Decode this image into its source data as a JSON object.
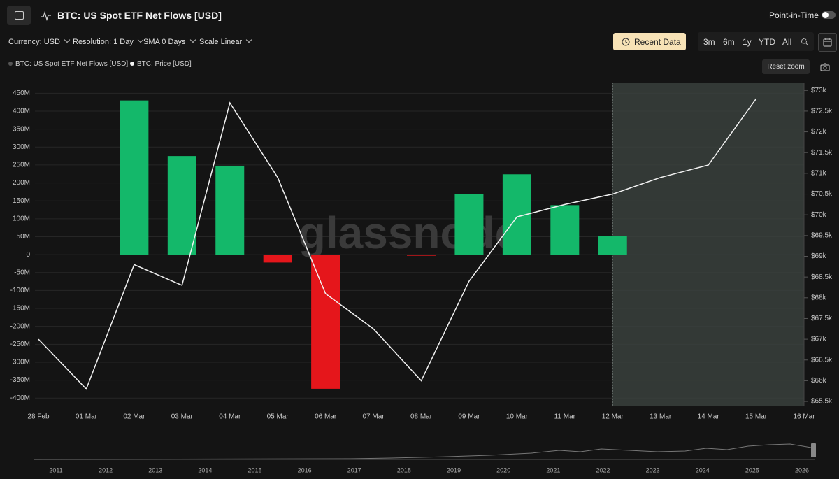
{
  "header": {
    "title": "BTC: US Spot ETF Net Flows [USD]",
    "toggle_label": "Point-in-Time"
  },
  "toolbar": {
    "controls": [
      "Currency: USD",
      "Resolution: 1 Day",
      "SMA 0 Days",
      "Scale Linear"
    ],
    "recent_button": "Recent Data",
    "ranges": [
      "3m",
      "6m",
      "1y",
      "YTD",
      "All"
    ]
  },
  "reset_zoom": "Reset zoom",
  "watermark": "glassnode",
  "chart_data": {
    "type": "combo",
    "categories": [
      "28 Feb",
      "01 Mar",
      "02 Mar",
      "03 Mar",
      "04 Mar",
      "05 Mar",
      "06 Mar",
      "07 Mar",
      "08 Mar",
      "09 Mar",
      "10 Mar",
      "11 Mar",
      "12 Mar",
      "13 Mar",
      "14 Mar",
      "15 Mar",
      "16 Mar"
    ],
    "series": [
      {
        "name": "BTC: US Spot ETF Net Flows [USD]",
        "type": "bar",
        "color": "#14b86a",
        "negative_color": "#e5161b",
        "values": [
          null,
          null,
          430,
          275,
          248,
          -22,
          -374,
          null,
          -3,
          168,
          224,
          138,
          51,
          null,
          null,
          null,
          null
        ]
      },
      {
        "name": "BTC: Price [USD]",
        "type": "line",
        "axis": "y2",
        "color": "#f2f2f2",
        "values": [
          67000,
          65800,
          68800,
          68300,
          72700,
          70900,
          68100,
          67250,
          66000,
          68400,
          69950,
          70250,
          70500,
          70900,
          71200,
          72800,
          null
        ]
      }
    ],
    "ylim": [
      -421,
      480
    ],
    "yticks": [
      {
        "value": 450,
        "label": "450M"
      },
      {
        "value": 400,
        "label": "400M"
      },
      {
        "value": 350,
        "label": "350M"
      },
      {
        "value": 300,
        "label": "300M"
      },
      {
        "value": 250,
        "label": "250M"
      },
      {
        "value": 200,
        "label": "200M"
      },
      {
        "value": 150,
        "label": "150M"
      },
      {
        "value": 100,
        "label": "100M"
      },
      {
        "value": 50,
        "label": "50M"
      },
      0,
      {
        "value": -50,
        "label": "-50M"
      },
      {
        "value": -100,
        "label": "-100M"
      },
      {
        "value": -150,
        "label": "-150M"
      },
      {
        "value": -200,
        "label": "-200M"
      },
      {
        "value": -250,
        "label": "-250M"
      },
      {
        "value": -300,
        "label": "-300M"
      },
      {
        "value": -350,
        "label": "-350M"
      },
      {
        "value": -400,
        "label": "-400M"
      }
    ],
    "y2lim": [
      65400,
      73190
    ],
    "y2ticks": [
      {
        "value": 73000,
        "label": "$73k"
      },
      {
        "value": 72500,
        "label": "$72.5k"
      },
      {
        "value": 72000,
        "label": "$72k"
      },
      {
        "value": 71500,
        "label": "$71.5k"
      },
      {
        "value": 71000,
        "label": "$71k"
      },
      {
        "value": 70500,
        "label": "$70.5k"
      },
      {
        "value": 70000,
        "label": "$70k"
      },
      {
        "value": 69500,
        "label": "$69.5k"
      },
      {
        "value": 69000,
        "label": "$69k"
      },
      {
        "value": 68500,
        "label": "$68.5k"
      },
      {
        "value": 68000,
        "label": "$68k"
      },
      {
        "value": 67500,
        "label": "$67.5k"
      },
      {
        "value": 67000,
        "label": "$67k"
      },
      {
        "value": 66500,
        "label": "$66.5k"
      },
      {
        "value": 66000,
        "label": "$66k"
      },
      {
        "value": 65500,
        "label": "$65.5k"
      }
    ],
    "grid": true
  },
  "navigator": {
    "years": [
      "2011",
      "2012",
      "2013",
      "2014",
      "2015",
      "2016",
      "2017",
      "2018",
      "2019",
      "2020",
      "2021",
      "2022",
      "2023",
      "2024",
      "2025",
      "2026"
    ]
  }
}
